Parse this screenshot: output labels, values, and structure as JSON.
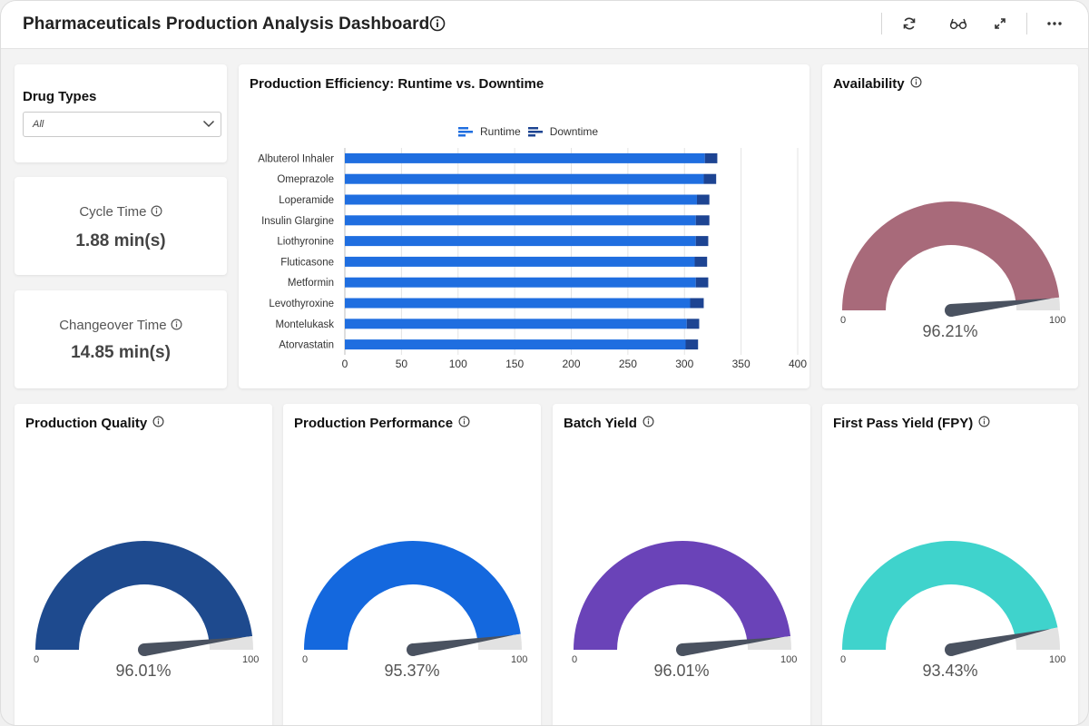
{
  "header": {
    "title": "Pharmaceuticals Production Analysis Dashboard"
  },
  "filter": {
    "label": "Drug Types",
    "value": "All"
  },
  "kpis": {
    "cycle_time": {
      "label": "Cycle Time",
      "value": "1.88 min(s)"
    },
    "changeover_time": {
      "label": "Changeover Time",
      "value": "14.85 min(s)"
    }
  },
  "chart_data": {
    "type": "bar",
    "orientation": "horizontal",
    "stacked": true,
    "title": "Production Efficiency: Runtime vs. Downtime",
    "categories": [
      "Albuterol Inhaler",
      "Omeprazole",
      "Loperamide",
      "Insulin Glargine",
      "Liothyronine",
      "Fluticasone",
      "Metformin",
      "Levothyroxine",
      "Montelukask",
      "Atorvastatin"
    ],
    "series": [
      {
        "name": "Runtime",
        "color": "#1f6ee0",
        "values": [
          318,
          317,
          311,
          310,
          310,
          309,
          310,
          305,
          302,
          301
        ]
      },
      {
        "name": "Downtime",
        "color": "#1d4492",
        "values": [
          11,
          11,
          11,
          12,
          11,
          11,
          11,
          12,
          11,
          11
        ]
      }
    ],
    "xticks": [
      "0",
      "50",
      "100",
      "150",
      "200",
      "250",
      "300",
      "350",
      "400"
    ],
    "xlim": [
      0,
      400
    ],
    "grid": true,
    "legend": "top-center"
  },
  "gauges": [
    {
      "key": "availability",
      "title": "Availability",
      "value": 96.21,
      "display": "96.21%",
      "min": "0",
      "max": "100",
      "color": "#a86a7a"
    },
    {
      "key": "quality",
      "title": "Production Quality",
      "value": 96.01,
      "display": "96.01%",
      "min": "0",
      "max": "100",
      "color": "#1e4a8e"
    },
    {
      "key": "performance",
      "title": "Production Performance",
      "value": 95.37,
      "display": "95.37%",
      "min": "0",
      "max": "100",
      "color": "#1468de"
    },
    {
      "key": "batch_yield",
      "title": "Batch Yield",
      "value": 96.01,
      "display": "96.01%",
      "min": "0",
      "max": "100",
      "color": "#6a43b8"
    },
    {
      "key": "fpy",
      "title": "First Pass Yield (FPY)",
      "value": 93.43,
      "display": "93.43%",
      "min": "0",
      "max": "100",
      "color": "#3fd3cc"
    }
  ],
  "icons": {
    "info": "info-circle-icon",
    "refresh": "refresh-icon",
    "glasses": "glasses-icon",
    "expand": "expand-icon",
    "more": "more-horizontal-icon",
    "chevron": "chevron-down-icon"
  }
}
